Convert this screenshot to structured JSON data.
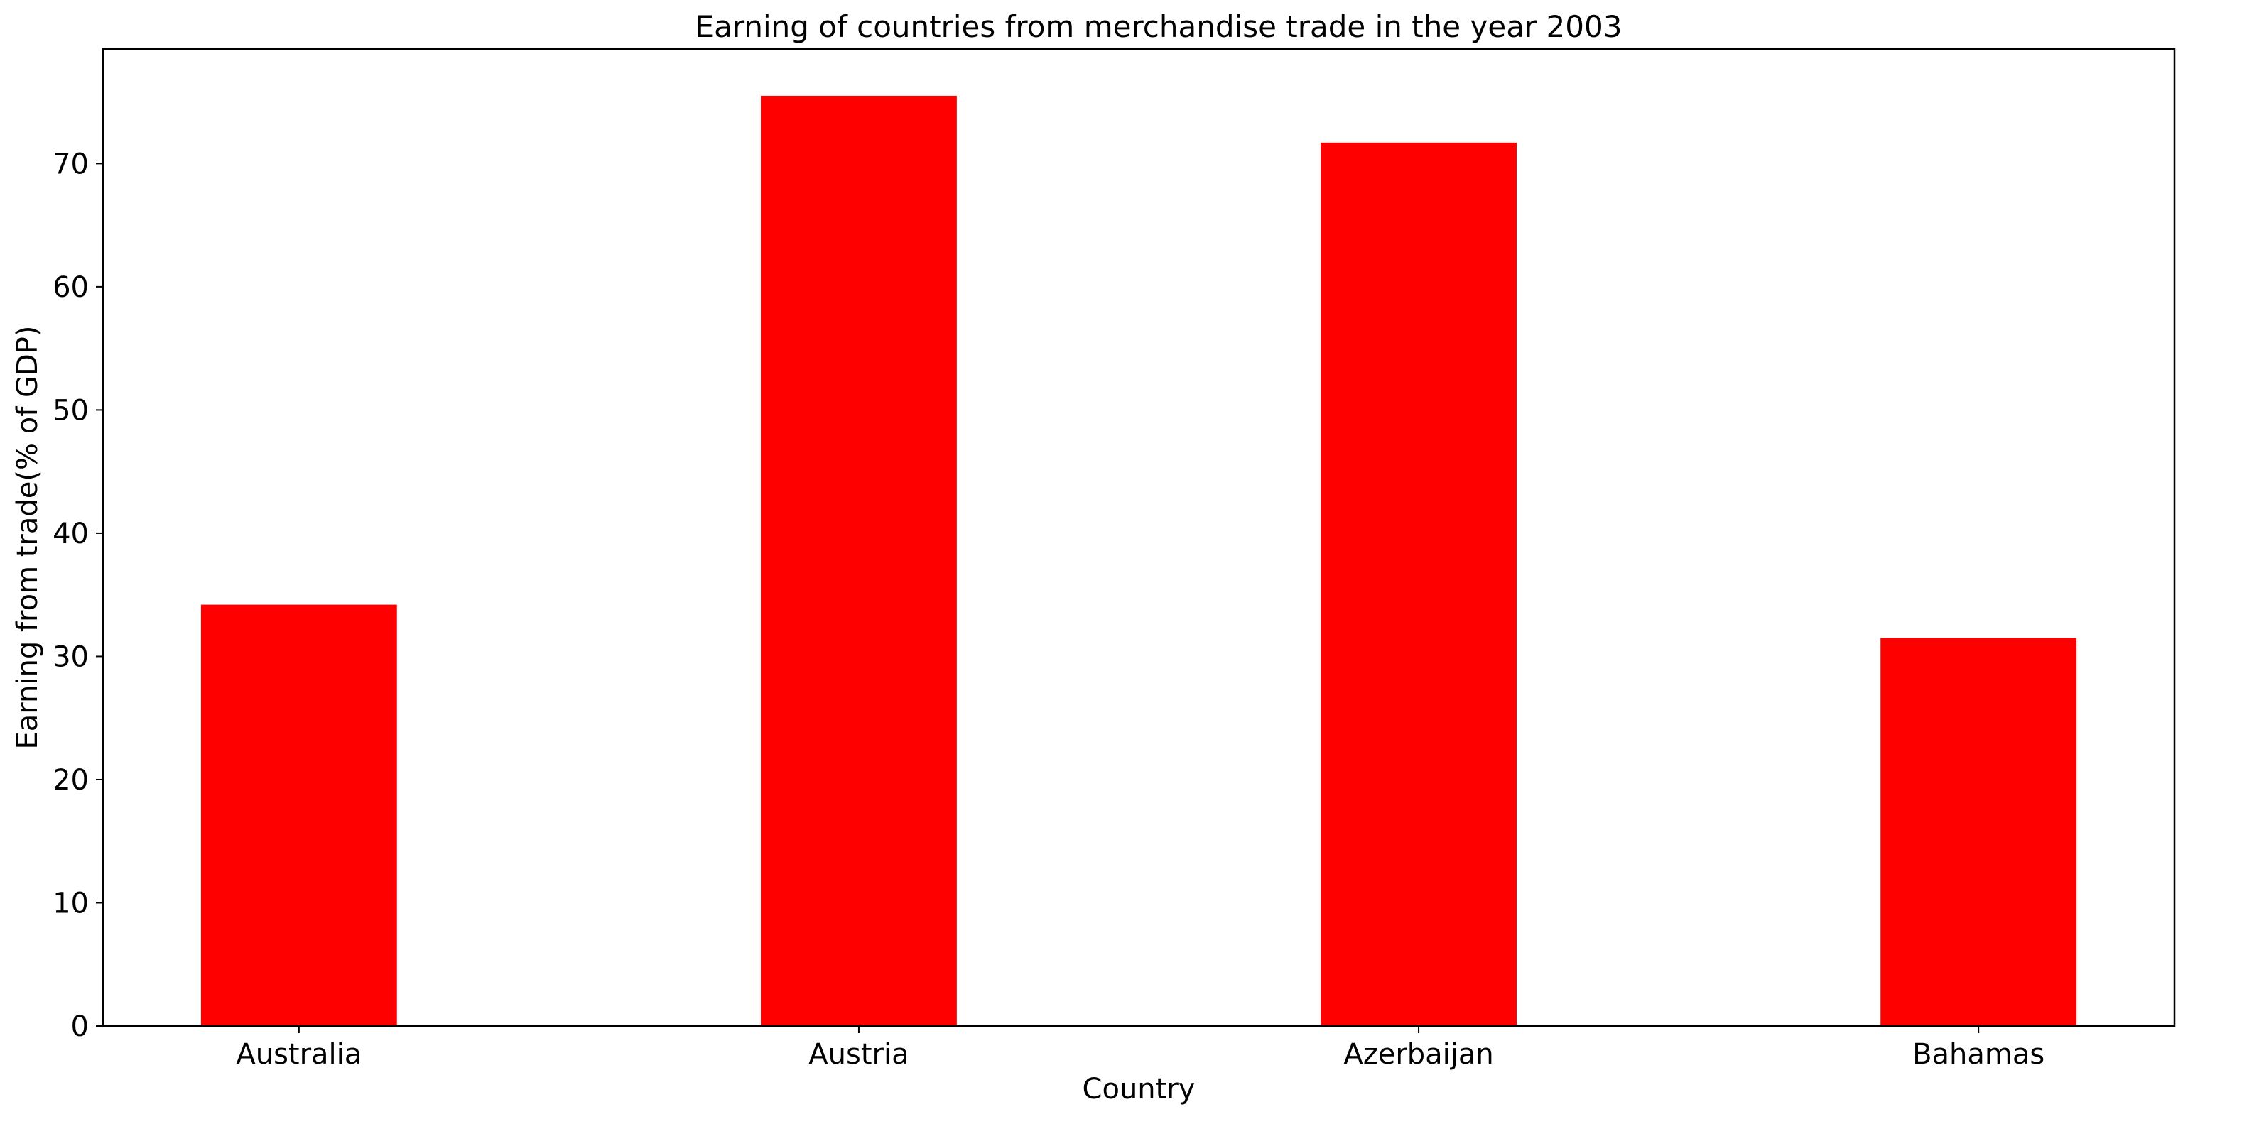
{
  "chart_data": {
    "type": "bar",
    "title": "Earning of countries from merchandise trade in the year 2003",
    "xlabel": "Country",
    "ylabel": "Earning from trade(% of GDP)",
    "categories": [
      "Australia",
      "Austria",
      "Azerbaijan",
      "Bahamas"
    ],
    "values": [
      34.2,
      75.5,
      71.7,
      31.5
    ],
    "ylim": [
      0,
      79.3
    ],
    "yticks": [
      0,
      10,
      20,
      30,
      40,
      50,
      60,
      70
    ],
    "grid": false,
    "legend": "none",
    "colors": {
      "bar": "#ff0000",
      "axis": "#000000",
      "background": "#ffffff"
    }
  }
}
